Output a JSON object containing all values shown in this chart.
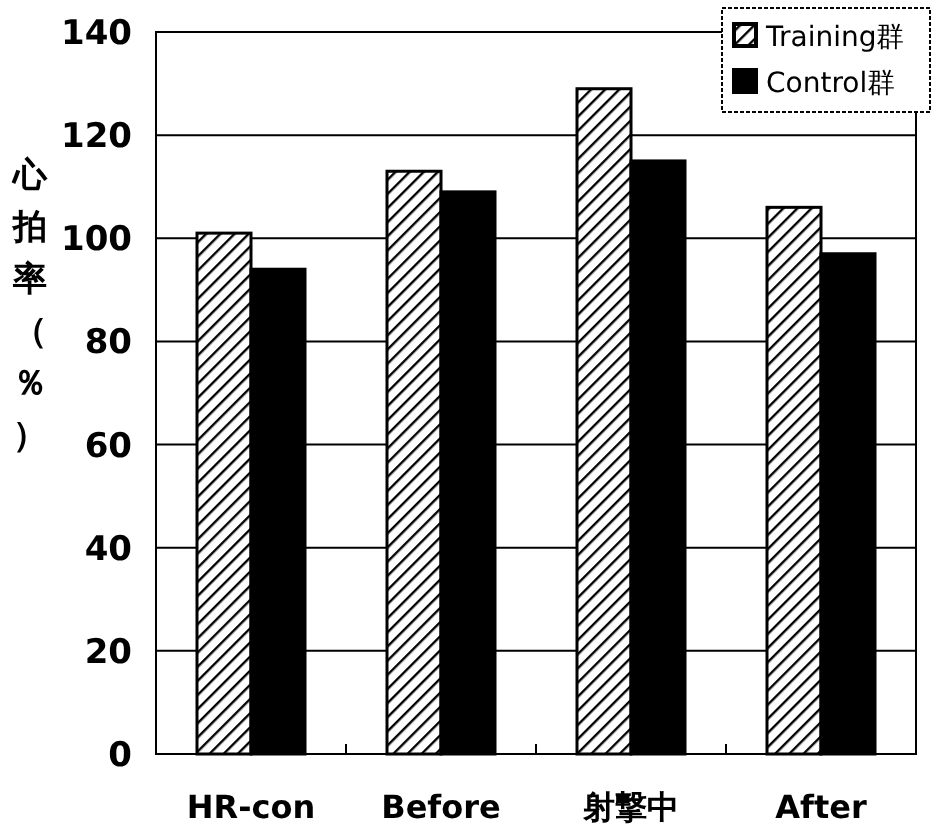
{
  "chart_data": {
    "type": "bar",
    "ylabel": "心拍率（％）",
    "categories": [
      "HR-con",
      "Before",
      "射撃中",
      "After"
    ],
    "series": [
      {
        "name": "Training群",
        "color": "#000000",
        "values": [
          101,
          113,
          129,
          106
        ]
      },
      {
        "name": "Control群",
        "color": "#000000",
        "values": [
          94,
          109,
          115,
          97
        ]
      }
    ],
    "ylim": [
      0,
      140
    ],
    "yticks": [
      0,
      20,
      40,
      60,
      80,
      100,
      120,
      140
    ],
    "grid": "y",
    "legend": "top right"
  }
}
